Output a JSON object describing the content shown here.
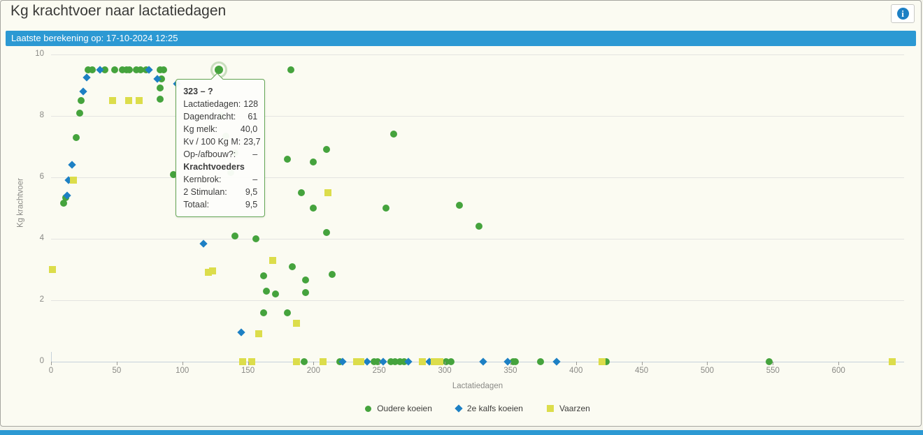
{
  "header": {
    "title": "Kg krachtvoer naar lactatiedagen",
    "info_label": "i"
  },
  "status_bar": {
    "text": "Laatste berekening op: 17-10-2024 12:25"
  },
  "colors": {
    "accent_blue": "#2c99d3",
    "series_green": "#45a33d",
    "series_blue": "#1d80c4",
    "series_yellow": "#dcdd4b",
    "tooltip_border": "#63a554"
  },
  "chart_data": {
    "type": "scatter",
    "xlabel": "Lactatiedagen",
    "ylabel": "Kg krachtvoer",
    "xlim": [
      0,
      650
    ],
    "ylim": [
      0,
      10
    ],
    "x_ticks": [
      0,
      50,
      100,
      150,
      200,
      250,
      300,
      350,
      400,
      450,
      500,
      550,
      600
    ],
    "y_ticks": [
      0,
      2,
      4,
      6,
      8,
      10
    ],
    "grid": "horizontal",
    "legend_position": "bottom-center",
    "series": [
      {
        "name": "Oudere koeien",
        "marker": "circle",
        "color": "#45a33d",
        "points": [
          [
            28,
            9.5
          ],
          [
            31.5,
            9.5
          ],
          [
            41,
            9.5
          ],
          [
            48.5,
            9.5
          ],
          [
            54.5,
            9.5
          ],
          [
            57.5,
            9.5
          ],
          [
            59.5,
            9.5
          ],
          [
            65,
            9.5
          ],
          [
            68,
            9.5
          ],
          [
            72.5,
            9.5
          ],
          [
            83,
            9.5
          ],
          [
            86,
            9.5
          ],
          [
            183,
            9.5
          ],
          [
            84,
            9.2
          ],
          [
            83,
            8.9
          ],
          [
            83,
            8.55
          ],
          [
            23,
            8.5
          ],
          [
            22,
            8.1
          ],
          [
            19,
            7.3
          ],
          [
            11,
            5.35
          ],
          [
            9.5,
            5.15
          ],
          [
            93,
            6.1
          ],
          [
            130,
            8.0
          ],
          [
            133,
            7.35
          ],
          [
            140,
            6.8
          ],
          [
            137,
            6.15
          ],
          [
            140,
            4.1
          ],
          [
            156,
            4.0
          ],
          [
            180,
            6.6
          ],
          [
            191,
            5.5
          ],
          [
            200,
            6.5
          ],
          [
            200,
            5.0
          ],
          [
            210,
            6.9
          ],
          [
            210,
            4.2
          ],
          [
            184,
            3.1
          ],
          [
            162,
            2.8
          ],
          [
            194,
            2.65
          ],
          [
            214,
            2.85
          ],
          [
            164,
            2.3
          ],
          [
            171,
            2.2
          ],
          [
            194,
            2.25
          ],
          [
            162,
            1.6
          ],
          [
            180,
            1.6
          ],
          [
            255,
            5.0
          ],
          [
            261,
            7.4
          ],
          [
            311,
            5.1
          ],
          [
            326,
            4.4
          ],
          [
            193,
            0
          ],
          [
            220,
            0
          ],
          [
            246,
            0
          ],
          [
            249,
            0
          ],
          [
            259,
            0
          ],
          [
            262,
            0
          ],
          [
            266,
            0
          ],
          [
            269,
            0
          ],
          [
            301,
            0
          ],
          [
            305,
            0
          ],
          [
            352,
            0
          ],
          [
            354,
            0
          ],
          [
            373,
            0
          ],
          [
            423,
            0
          ],
          [
            547,
            0
          ]
        ]
      },
      {
        "name": "2e kalfs koeien",
        "marker": "diamond",
        "color": "#1d80c4",
        "points": [
          [
            37.5,
            9.5
          ],
          [
            74.5,
            9.5
          ],
          [
            27,
            9.25
          ],
          [
            81,
            9.2
          ],
          [
            24.5,
            8.8
          ],
          [
            96,
            9.05
          ],
          [
            16,
            6.4
          ],
          [
            13.5,
            5.9
          ],
          [
            12,
            5.4
          ],
          [
            116,
            3.85
          ],
          [
            145,
            0.95
          ],
          [
            222,
            0
          ],
          [
            241,
            0
          ],
          [
            253,
            0
          ],
          [
            272,
            0
          ],
          [
            288,
            0
          ],
          [
            329,
            0
          ],
          [
            348,
            0
          ],
          [
            385,
            0
          ]
        ]
      },
      {
        "name": "Vaarzen",
        "marker": "square",
        "color": "#dcdd4b",
        "points": [
          [
            47,
            8.5
          ],
          [
            59,
            8.5
          ],
          [
            67,
            8.5
          ],
          [
            17,
            5.9
          ],
          [
            1,
            3.0
          ],
          [
            120,
            2.9
          ],
          [
            123,
            2.95
          ],
          [
            169,
            3.3
          ],
          [
            211,
            5.5
          ],
          [
            187,
            1.25
          ],
          [
            158,
            0.9
          ],
          [
            146,
            0
          ],
          [
            153,
            0
          ],
          [
            187,
            0
          ],
          [
            207,
            0
          ],
          [
            233,
            0
          ],
          [
            236,
            0
          ],
          [
            283,
            0
          ],
          [
            292,
            0
          ],
          [
            296,
            0
          ],
          [
            420,
            0
          ],
          [
            641,
            0
          ]
        ]
      }
    ],
    "highlight": {
      "series": "Oudere koeien",
      "x": 128,
      "y": 9.5
    }
  },
  "tooltip": {
    "title": "323 – ?",
    "rows": [
      {
        "label": "Lactatiedagen:",
        "value": "128"
      },
      {
        "label": "Dagendracht:",
        "value": "61"
      },
      {
        "label": "Kg melk:",
        "value": "40,0"
      },
      {
        "label": "Kv / 100 Kg M:",
        "value": "23,7"
      },
      {
        "label": "Op-/afbouw?:",
        "value": "–"
      },
      {
        "label": "Krachtvoeders",
        "value": "",
        "bold": true
      },
      {
        "label": "Kernbrok:",
        "value": "–"
      },
      {
        "label": "2 Stimulan:",
        "value": "9,5"
      },
      {
        "label": "Totaal:",
        "value": "9,5"
      }
    ]
  }
}
